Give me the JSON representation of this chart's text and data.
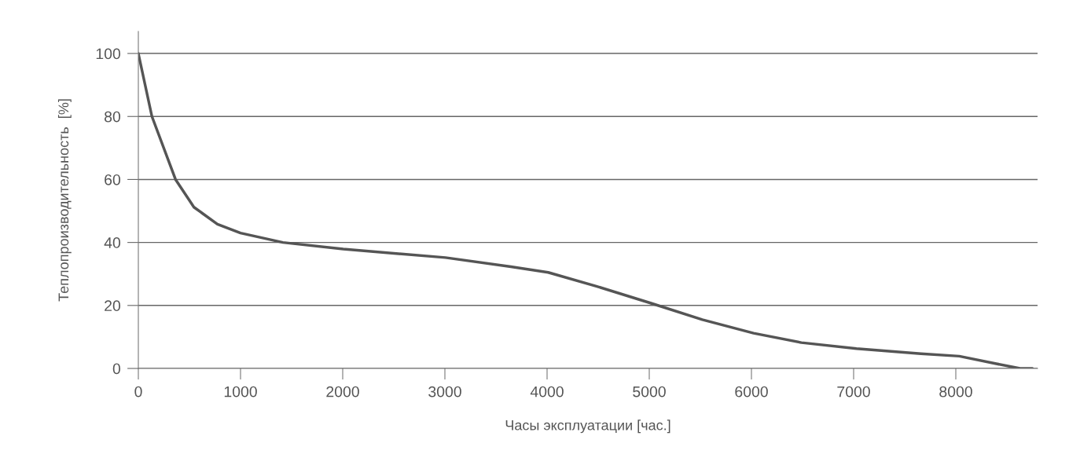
{
  "chart_data": {
    "type": "line",
    "xlabel": "Часы эксплуатации [час.]",
    "ylabel": "Теплопроизводительность  [%]",
    "x": [
      0,
      133,
      364,
      544,
      774,
      1000,
      1415,
      2005,
      3005,
      3646,
      4011,
      4482,
      5018,
      5519,
      6021,
      6489,
      7028,
      7659,
      8034,
      8396,
      8629,
      8750
    ],
    "series": [
      {
        "color": "#555555",
        "values": [
          100,
          80,
          60,
          51.2,
          45.8,
          43,
          40,
          37.9,
          35.2,
          32.3,
          30.5,
          26.1,
          20.7,
          15.5,
          11.2,
          8.2,
          6.3,
          4.7,
          3.9,
          1.5,
          0,
          0
        ]
      }
    ],
    "xlim": [
      0,
      8800
    ],
    "ylim": [
      0,
      107
    ],
    "xticks": [
      0,
      1000,
      2000,
      3000,
      4000,
      5000,
      6000,
      7000,
      8000
    ],
    "yticks": [
      0,
      20,
      40,
      60,
      80,
      100
    ],
    "grid": "y",
    "legend": false,
    "marker": "none",
    "line_style": "solid"
  }
}
